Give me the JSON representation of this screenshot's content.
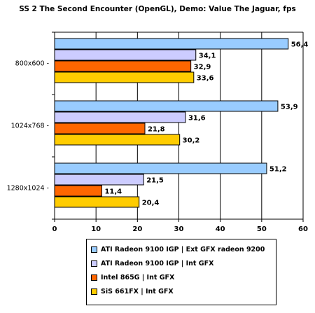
{
  "chart_data": {
    "type": "bar",
    "orientation": "horizontal",
    "title": "SS 2 The Second Encounter (OpenGL), Demo: Value The Jaguar, fps",
    "categories": [
      "800x600 -",
      "1024x768 -",
      "1280x1024 -"
    ],
    "series": [
      {
        "name": "ATI Radeon 9100 IGP | Ext GFX radeon 9200",
        "color": "#99ccff",
        "values": [
          56.4,
          53.9,
          51.2
        ],
        "labels": [
          "56,4",
          "53,9",
          "51,2"
        ]
      },
      {
        "name": "ATI Radeon 9100 IGP | Int GFX",
        "color": "#ccccff",
        "values": [
          34.1,
          31.6,
          21.5
        ],
        "labels": [
          "34,1",
          "31,6",
          "21,5"
        ]
      },
      {
        "name": "Intel 865G | Int GFX",
        "color": "#ff6600",
        "values": [
          32.9,
          21.8,
          11.4
        ],
        "labels": [
          "32,9",
          "21,8",
          "11,4"
        ]
      },
      {
        "name": "SiS 661FX | Int GFX",
        "color": "#ffcc00",
        "values": [
          33.6,
          30.2,
          20.4
        ],
        "labels": [
          "33,6",
          "30,2",
          "20,4"
        ]
      }
    ],
    "xlim": [
      0,
      60
    ],
    "xticks": [
      "0",
      "10",
      "20",
      "30",
      "40",
      "50",
      "60"
    ],
    "grid": "vertical",
    "legend_position": "bottom"
  }
}
